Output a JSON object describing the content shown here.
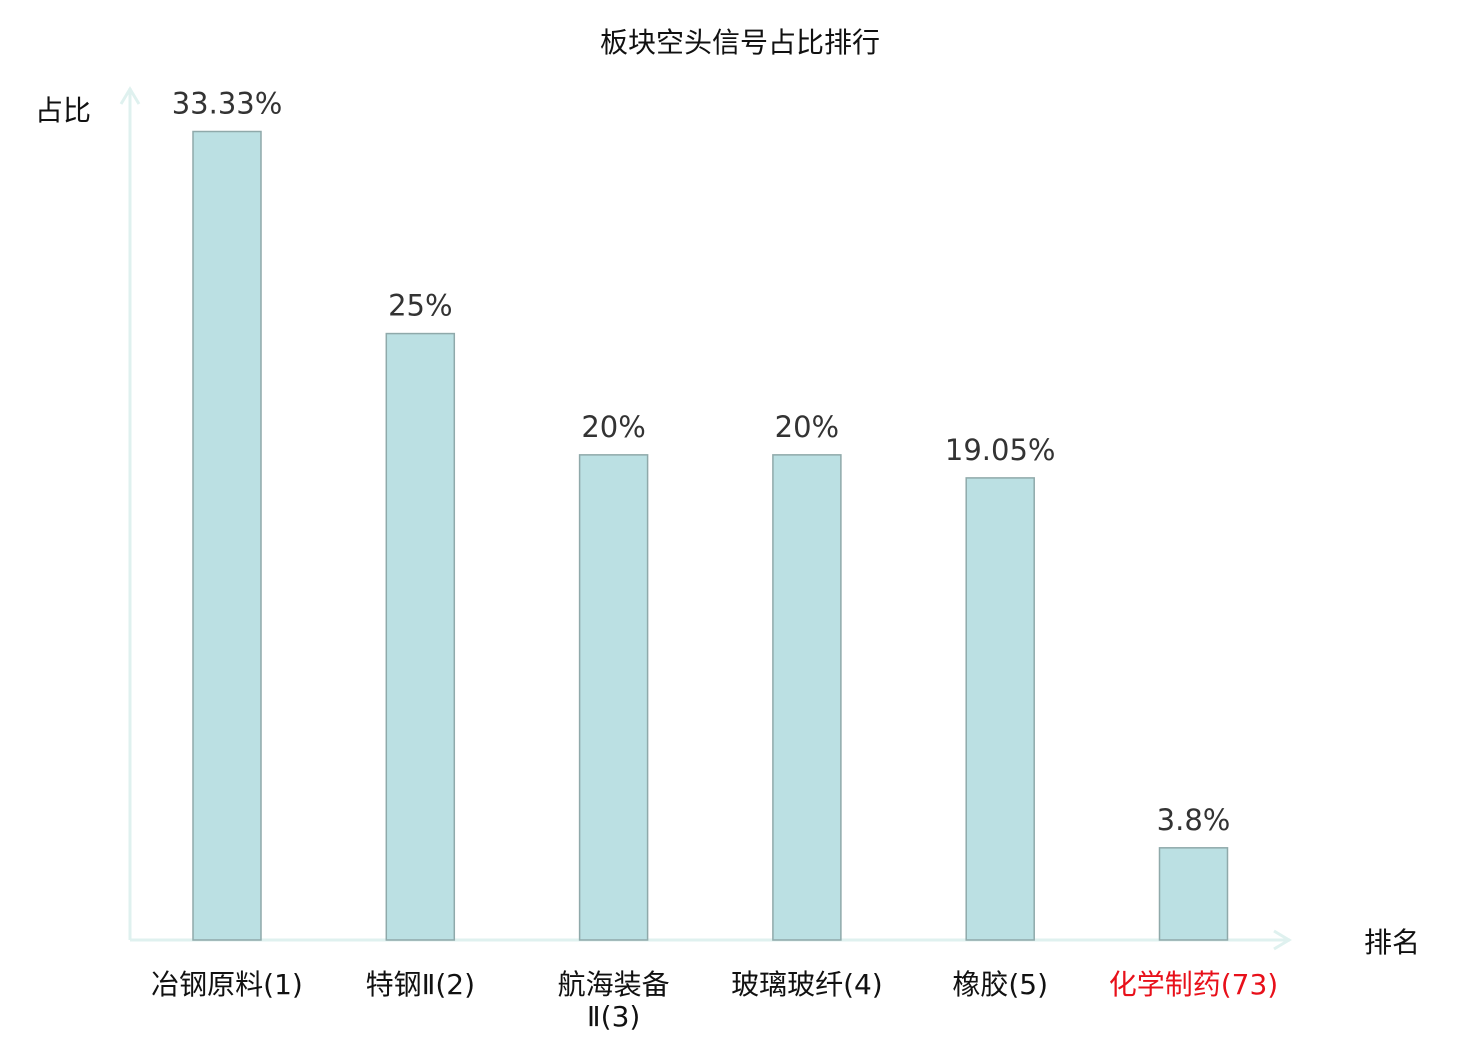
{
  "chart_data": {
    "type": "bar",
    "title": "板块空头信号占比排行",
    "ylabel": "占比",
    "xlabel": "排名",
    "ylim": [
      0,
      35
    ],
    "grid": false,
    "categories": [
      "冶钢原料(1)",
      "特钢Ⅱ(2)",
      "航海装备Ⅱ(3)",
      "玻璃玻纤(4)",
      "橡胶(5)",
      "化学制药(73)"
    ],
    "category_lines": [
      [
        "冶钢原料(1)"
      ],
      [
        "特钢Ⅱ(2)"
      ],
      [
        "航海装备",
        "Ⅱ(3)"
      ],
      [
        "玻璃玻纤(4)"
      ],
      [
        "橡胶(5)"
      ],
      [
        "化学制药(73)"
      ]
    ],
    "values": [
      33.33,
      25,
      20,
      20,
      19.05,
      3.8
    ],
    "data_labels": [
      "33.33%",
      "25%",
      "20%",
      "20%",
      "19.05%",
      "3.8%"
    ],
    "highlight_index": 5,
    "colors": {
      "bar_fill": "#bbe0e3",
      "bar_stroke": "#8fa9aa",
      "axis": "#dff1ef",
      "text": "#333333",
      "highlight_text": "#e8101a"
    }
  }
}
